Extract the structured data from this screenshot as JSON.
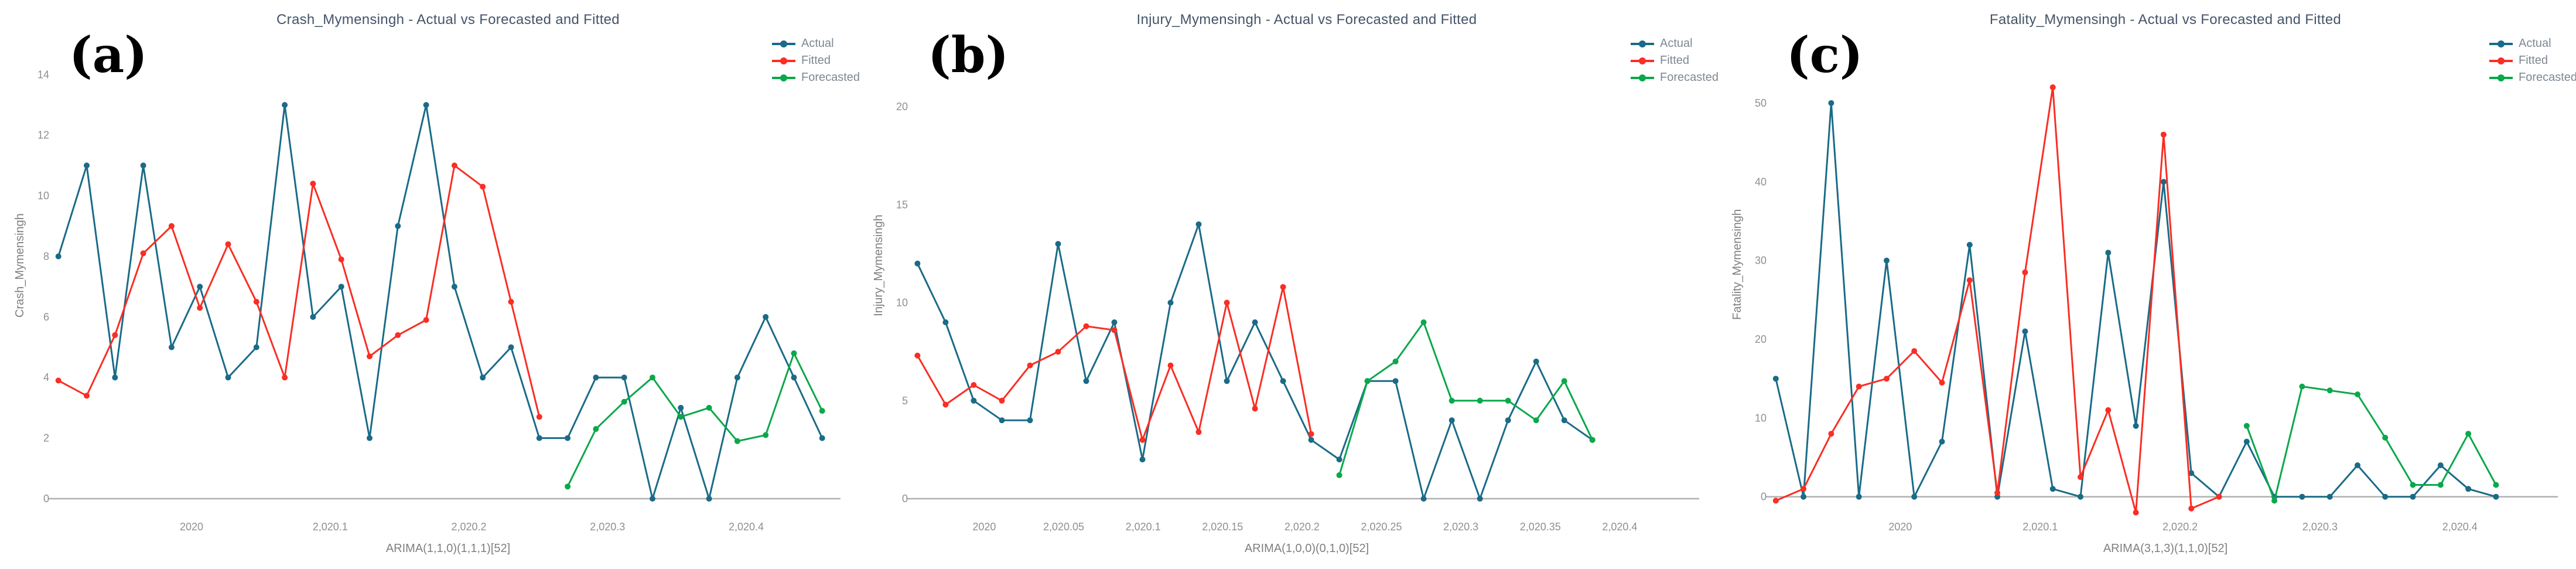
{
  "page": {
    "background": "#ffffff"
  },
  "colors": {
    "actual": "#1a6b87",
    "fitted": "#f92e24",
    "forecasted": "#0aa84a",
    "title_text": "#44546a",
    "tick_text": "#8f8f8f",
    "axis_line": "#b0b0b0",
    "legend_text": "#7d8893",
    "panel_letter": "#000000"
  },
  "chart_data": [
    {
      "panel_label": "(a)",
      "title": "Crash_Mymensingh - Actual vs Forecasted and Fitted",
      "type": "line",
      "ylabel": "Crash_Mymensingh",
      "xlabel": "ARIMA(1,1,0)(1,1,1)[52]",
      "legend_position": "top-right",
      "grid": false,
      "x_start": 2019.904,
      "x_step": 0.0204,
      "xlim": [
        2019.902,
        2020.468
      ],
      "ylim": [
        0,
        15.4
      ],
      "plot_bottom": 851,
      "yticks": [
        0,
        2,
        4,
        6,
        8,
        10,
        12,
        14
      ],
      "xticks": [
        {
          "v": 2020,
          "label": "2020"
        },
        {
          "v": 2020.1,
          "label": "2,020.1"
        },
        {
          "v": 2020.2,
          "label": "2,020.2"
        },
        {
          "v": 2020.3,
          "label": "2,020.3"
        },
        {
          "v": 2020.4,
          "label": "2,020.4"
        }
      ],
      "series": [
        {
          "name": "Actual",
          "color": "#1a6b87",
          "start_index": 0,
          "values": [
            8,
            11,
            4,
            11,
            5,
            7,
            4,
            5,
            13,
            6,
            7,
            2,
            9,
            13,
            7,
            4,
            5,
            2,
            2,
            4,
            4,
            0,
            3,
            0,
            4,
            6,
            4,
            2
          ]
        },
        {
          "name": "Fitted",
          "color": "#f92e24",
          "start_index": 0,
          "values": [
            3.9,
            3.4,
            5.4,
            8.1,
            9,
            6.3,
            8.4,
            6.5,
            4,
            10.4,
            7.9,
            4.7,
            5.4,
            5.9,
            11,
            10.3,
            6.5,
            2.7
          ]
        },
        {
          "name": "Forecasted",
          "color": "#0aa84a",
          "start_index": 18,
          "values": [
            0.4,
            2.3,
            3.2,
            4,
            2.7,
            3,
            1.9,
            2.1,
            4.8,
            2.9
          ]
        }
      ]
    },
    {
      "panel_label": "(b)",
      "title": "Injury_Mymensingh - Actual vs Forecasted and Fitted",
      "type": "line",
      "ylabel": "Injury_Mymensingh",
      "xlabel": "ARIMA(1,0,0)(0,1,0)[52]",
      "legend_position": "top-right",
      "grid": false,
      "x_start": 2019.958,
      "x_step": 0.0177,
      "xlim": [
        2019.956,
        2020.45
      ],
      "ylim": [
        0,
        23.8
      ],
      "plot_bottom": 851,
      "yticks": [
        0,
        5,
        10,
        15,
        20
      ],
      "xticks": [
        {
          "v": 2020,
          "label": "2020"
        },
        {
          "v": 2020.05,
          "label": "2,020.05"
        },
        {
          "v": 2020.1,
          "label": "2,020.1"
        },
        {
          "v": 2020.15,
          "label": "2,020.15"
        },
        {
          "v": 2020.2,
          "label": "2,020.2"
        },
        {
          "v": 2020.25,
          "label": "2,020.25"
        },
        {
          "v": 2020.3,
          "label": "2,020.3"
        },
        {
          "v": 2020.35,
          "label": "2,020.35"
        },
        {
          "v": 2020.4,
          "label": "2,020.4"
        }
      ],
      "series": [
        {
          "name": "Actual",
          "color": "#1a6b87",
          "start_index": 0,
          "values": [
            12,
            9,
            5,
            4,
            4,
            13,
            6,
            9,
            2,
            10,
            14,
            6,
            9,
            6,
            3,
            2,
            6,
            6,
            0,
            4,
            0,
            4,
            7,
            4,
            3
          ]
        },
        {
          "name": "Fitted",
          "color": "#f92e24",
          "start_index": 0,
          "values": [
            7.3,
            4.8,
            5.8,
            5,
            6.8,
            7.5,
            8.8,
            8.6,
            3,
            6.8,
            3.4,
            10,
            4.6,
            10.8,
            3.3
          ]
        },
        {
          "name": "Forecasted",
          "color": "#0aa84a",
          "start_index": 15,
          "values": [
            1.2,
            6,
            7,
            9,
            5,
            5,
            5,
            4,
            6,
            3
          ]
        }
      ]
    },
    {
      "panel_label": "(c)",
      "title": "Fatality_Mymensingh - Actual vs Forecasted and Fitted",
      "type": "line",
      "ylabel": "Fatality_Mymensingh",
      "xlabel": "ARIMA(3,1,3)(1,1,0)[52]",
      "legend_position": "top-right",
      "grid": false,
      "x_start": 2019.911,
      "x_step": 0.0198,
      "xlim": [
        2019.909,
        2020.47
      ],
      "ylim": [
        -3,
        59
      ],
      "plot_bottom": 888,
      "yticks": [
        0,
        10,
        20,
        30,
        40,
        50
      ],
      "xticks": [
        {
          "v": 2020,
          "label": "2020"
        },
        {
          "v": 2020.1,
          "label": "2,020.1"
        },
        {
          "v": 2020.2,
          "label": "2,020.2"
        },
        {
          "v": 2020.3,
          "label": "2,020.3"
        },
        {
          "v": 2020.4,
          "label": "2,020.4"
        }
      ],
      "series": [
        {
          "name": "Actual",
          "color": "#1a6b87",
          "start_index": 0,
          "values": [
            15,
            0,
            50,
            0,
            30,
            0,
            7,
            32,
            0,
            21,
            1,
            0,
            31,
            9,
            40,
            3,
            0,
            7,
            0,
            0,
            0,
            4,
            0,
            0,
            4,
            1,
            0
          ]
        },
        {
          "name": "Fitted",
          "color": "#f92e24",
          "start_index": 0,
          "values": [
            -0.5,
            1,
            8,
            14,
            15,
            18.5,
            14.5,
            27.5,
            0.5,
            28.5,
            52,
            2.5,
            11,
            -2,
            46,
            -1.5,
            0
          ]
        },
        {
          "name": "Forecasted",
          "color": "#0aa84a",
          "start_index": 17,
          "values": [
            9,
            -0.5,
            14,
            13.5,
            13,
            7.5,
            1.5,
            1.5,
            8,
            1.5
          ]
        }
      ]
    }
  ]
}
